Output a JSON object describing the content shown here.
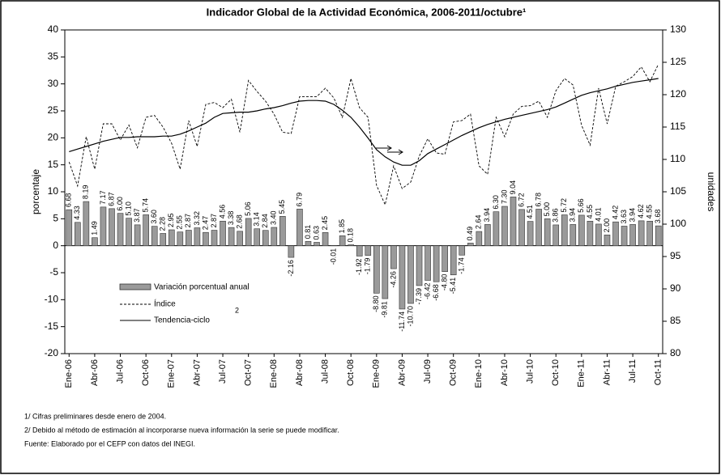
{
  "chart_data": {
    "type": "bar-line",
    "title": "Indicador Global de la Actividad Económica, 2006-2011/octubre¹",
    "y_label": "porcentaje",
    "y2_label": "unidades",
    "categories": [
      "Ene-06",
      null,
      null,
      "Abr-06",
      null,
      null,
      "Jul-06",
      null,
      null,
      "Oct-06",
      null,
      null,
      "Ene-07",
      null,
      null,
      "Abr-07",
      null,
      null,
      "Jul-07",
      null,
      null,
      "Oct-07",
      null,
      null,
      "Ene-08",
      null,
      null,
      "Abr-08",
      null,
      null,
      "Jul-08",
      null,
      null,
      "Oct-08",
      null,
      null,
      "Ene-09",
      null,
      null,
      "Abr-09",
      null,
      null,
      "Jul-09",
      null,
      null,
      "Oct-09",
      null,
      null,
      "Ene-10",
      null,
      null,
      "Abr-10",
      null,
      null,
      "Jul-10",
      null,
      null,
      "Oct-10",
      null,
      null,
      "Ene-11",
      null,
      null,
      "Abr-11",
      null,
      null,
      "Jul-11",
      null,
      null,
      "Oct-11"
    ],
    "series": [
      {
        "name": "Variación porcentual anual",
        "kind": "bar",
        "color": "#9a9a9a",
        "values": [
          6.68,
          4.33,
          8.19,
          1.49,
          7.17,
          6.87,
          6,
          5.1,
          3.87,
          5.74,
          3.6,
          2.28,
          2.95,
          2.55,
          2.87,
          3.32,
          2.47,
          2.87,
          4.56,
          3.38,
          2.68,
          5.06,
          3.14,
          2.84,
          3.4,
          5.45,
          -2.16,
          6.79,
          0.81,
          0.63,
          2.45,
          -0.01,
          1.85,
          0.18,
          -1.92,
          -1.79,
          -8.8,
          -9.81,
          -4.26,
          -11.74,
          -10.7,
          -7.39,
          -6.42,
          -6.68,
          -4.8,
          -5.41,
          -1.74,
          0.49,
          2.64,
          3.94,
          6.3,
          7.3,
          9.04,
          6.72,
          4.51,
          6.78,
          5,
          3.86,
          5.72,
          3.94,
          5.66,
          4.55,
          4.01,
          2,
          4.42,
          3.63,
          3.94,
          4.62,
          4.55,
          3.68
        ],
        "value_labels": [
          "6.68",
          "4.33",
          "8.19",
          "1.49",
          "7.17",
          "6.87",
          "6.00",
          "5.10",
          "3.87",
          "5.74",
          "3.60",
          "2.28",
          "2.95",
          "2.55",
          "2.87",
          "3.32",
          "2.47",
          "2.87",
          "4.56",
          "3.38",
          "2.68",
          "5.06",
          "3.14",
          "2.84",
          "3.40",
          "5.45",
          "-2.16",
          "6.79",
          "0.81",
          "0.63",
          "2.45",
          "-0.01",
          "1.85",
          "0.18",
          "-1.92",
          "-1.79",
          "-8.80",
          "-9.81",
          "-4.26",
          "-11.74",
          "-10.70",
          "-7.39",
          "-6.42",
          "-6.68",
          "-4.80",
          "-5.41",
          "-1.74",
          "0.49",
          "2.64",
          "3.94",
          "6.30",
          "7.30",
          "9.04",
          "6.72",
          "4.51",
          "6.78",
          "5.00",
          "3.86",
          "5.72",
          "3.94",
          "5.66",
          "4.55",
          "4.01",
          "2.00",
          "4.42",
          "3.63",
          "3.94",
          "4.62",
          "4.55",
          "3.68"
        ]
      },
      {
        "name": "Índice",
        "kind": "line",
        "axis": "y2",
        "dashed": true,
        "color": "#000000",
        "values": [
          109.6,
          105.9,
          113.5,
          108.5,
          115.5,
          115.5,
          113,
          115.3,
          111.8,
          116.5,
          116.8,
          115,
          112.5,
          108.5,
          116,
          112,
          118.5,
          118.8,
          118,
          119.3,
          114.2,
          122.2,
          120.5,
          119,
          117,
          114.2,
          114,
          119.7,
          119.7,
          119.7,
          121,
          119.5,
          116.5,
          122.5,
          118,
          116.5,
          106,
          103,
          109,
          105.5,
          106.5,
          110.5,
          113.2,
          111,
          110.8,
          115.8,
          116,
          117,
          109,
          107.7,
          116.5,
          113.5,
          117,
          118.2,
          118.3,
          119,
          116.5,
          120.6,
          122.5,
          121.5,
          115.3,
          112.2,
          121,
          115.5,
          121.3,
          122,
          122.8,
          124.3,
          122,
          124.7
        ]
      },
      {
        "name": "Tendencia-ciclo",
        "kind": "line",
        "axis": "y2",
        "dashed": false,
        "color": "#000000",
        "values": [
          111.2,
          111.6,
          112,
          112.4,
          112.8,
          113.1,
          113.4,
          113.4,
          113.5,
          113.5,
          113.5,
          113.6,
          113.6,
          113.9,
          114.4,
          115,
          115.6,
          116.5,
          117.1,
          117.2,
          117.3,
          117.3,
          117.5,
          117.8,
          118,
          118.3,
          118.7,
          119,
          119.1,
          119.1,
          119,
          118.5,
          117.6,
          116.5,
          115,
          113.3,
          111.5,
          110.4,
          109.6,
          109.1,
          109.1,
          109.8,
          110.9,
          111.6,
          112.3,
          113,
          113.7,
          114.3,
          114.9,
          115.4,
          115.8,
          116.2,
          116.5,
          116.8,
          117.1,
          117.4,
          117.7,
          118.1,
          118.7,
          119.3,
          119.9,
          120.3,
          120.6,
          120.9,
          121.3,
          121.6,
          121.9,
          122.1,
          122.3,
          122.5
        ]
      }
    ],
    "legend_note": "2",
    "ylim": [
      -20,
      40
    ],
    "yticks": [
      -20,
      -15,
      -10,
      -5,
      0,
      5,
      10,
      15,
      20,
      25,
      30,
      35,
      40
    ],
    "y2lim": [
      80,
      130
    ],
    "y2ticks": [
      80,
      85,
      90,
      95,
      100,
      105,
      110,
      115,
      120,
      125,
      130
    ],
    "footnotes": [
      "1/ Cifras preliminares desde enero de 2004.",
      "2/ Debido al método de estimación al incorporarse nueva información la serie se puede modificar.",
      "Fuente: Elaborado por el CEFP con datos del INEGI."
    ]
  }
}
